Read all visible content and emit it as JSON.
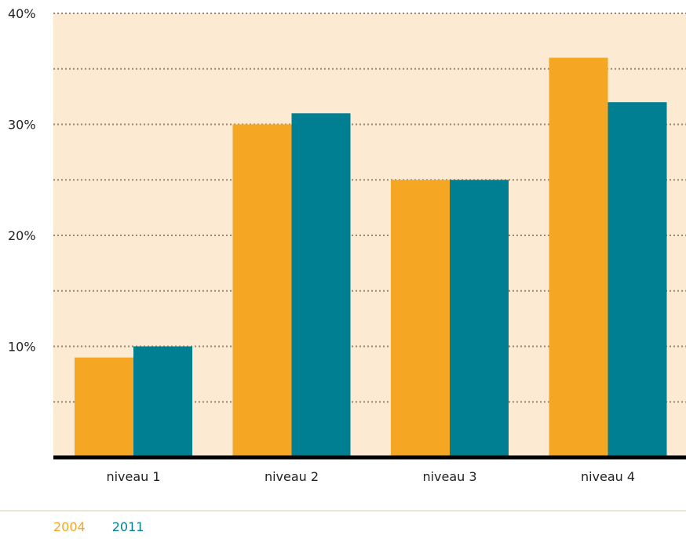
{
  "chart_data": {
    "type": "bar",
    "categories": [
      "niveau 1",
      "niveau 2",
      "niveau 3",
      "niveau 4"
    ],
    "series": [
      {
        "name": "2004",
        "values": [
          9,
          30,
          25,
          36
        ]
      },
      {
        "name": "2011",
        "values": [
          10,
          31,
          25,
          32
        ]
      }
    ],
    "ylim": [
      0,
      40
    ],
    "yticks": [
      10,
      20,
      30,
      40
    ],
    "ytick_labels": [
      "10%",
      "20%",
      "30%",
      "40%"
    ],
    "gridlines": [
      5,
      10,
      15,
      20,
      25,
      30,
      35,
      40
    ],
    "grid": true,
    "legend_position": "bottom-left",
    "colors": {
      "2004": "#F5A623",
      "2011": "#017F92",
      "plot_background": "#FCEBD2",
      "grid": "#9B8672",
      "baseline": "#000000"
    }
  }
}
